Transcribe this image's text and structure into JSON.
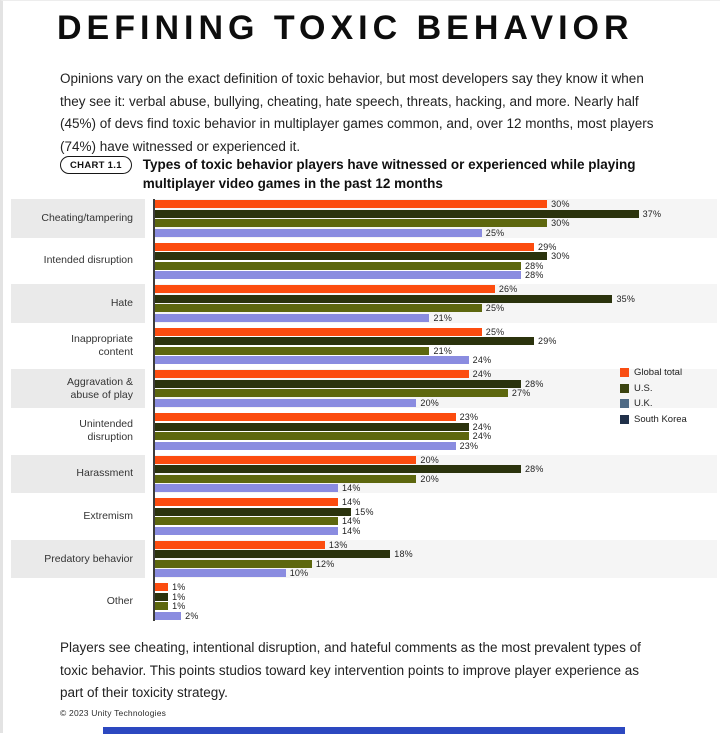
{
  "page": {
    "title": "DEFINING TOXIC BEHAVIOR",
    "intro": "Opinions vary on the exact definition of toxic behavior, but most developers say they know it when they see it: verbal abuse, bullying, cheating, hate speech, threats, hacking, and more. Nearly half (45%) of devs find toxic behavior in multiplayer games common, and, over 12 months, most players (74%) have witnessed or experienced it.",
    "outro": "Players see cheating, intentional disruption, and hateful comments as the most prevalent types of toxic behavior. This points studios toward key intervention points to improve player experience as part of their toxicity strategy.",
    "footer": "© 2023 Unity Technologies"
  },
  "chart_header": {
    "badge": "CHART 1.1",
    "title": "Types of toxic behavior players have witnessed or experienced while playing multiplayer video games in the past 12 months"
  },
  "chart_data": {
    "type": "bar",
    "orientation": "horizontal",
    "title": "Types of toxic behavior players have witnessed or experienced while playing multiplayer video games in the past 12 months",
    "unit": "percent",
    "value_suffix": "%",
    "axis_max": 43,
    "grid": false,
    "legend_position": "right",
    "categories": [
      "Cheating/tampering",
      "Intended disruption",
      "Hate",
      "Inappropriate content",
      "Aggravation & abuse of play",
      "Unintended disruption",
      "Harassment",
      "Extremism",
      "Predatory behavior",
      "Other"
    ],
    "series": [
      {
        "name": "Global total",
        "color": "#FC4C0F",
        "values": [
          30,
          29,
          26,
          25,
          24,
          23,
          20,
          14,
          13,
          1
        ]
      },
      {
        "name": "U.S.",
        "color": "#2B330D",
        "values": [
          37,
          30,
          35,
          29,
          28,
          24,
          28,
          15,
          18,
          1
        ]
      },
      {
        "name": "U.K.",
        "color": "#5D670E",
        "values": [
          30,
          28,
          25,
          21,
          27,
          24,
          20,
          14,
          12,
          1
        ]
      },
      {
        "name": "South Korea",
        "color": "#8A8CE0",
        "values": [
          25,
          28,
          21,
          24,
          20,
          23,
          14,
          14,
          10,
          2
        ]
      }
    ],
    "legend": [
      {
        "label": "Global total",
        "swatch": "#F94D12"
      },
      {
        "label": "U.S.",
        "swatch": "#3A430F"
      },
      {
        "label": "U.K.",
        "swatch": "#4E6A85"
      },
      {
        "label": "South Korea",
        "swatch": "#203049"
      }
    ],
    "striped_row_indexes": [
      0,
      2,
      4,
      6,
      8
    ]
  }
}
